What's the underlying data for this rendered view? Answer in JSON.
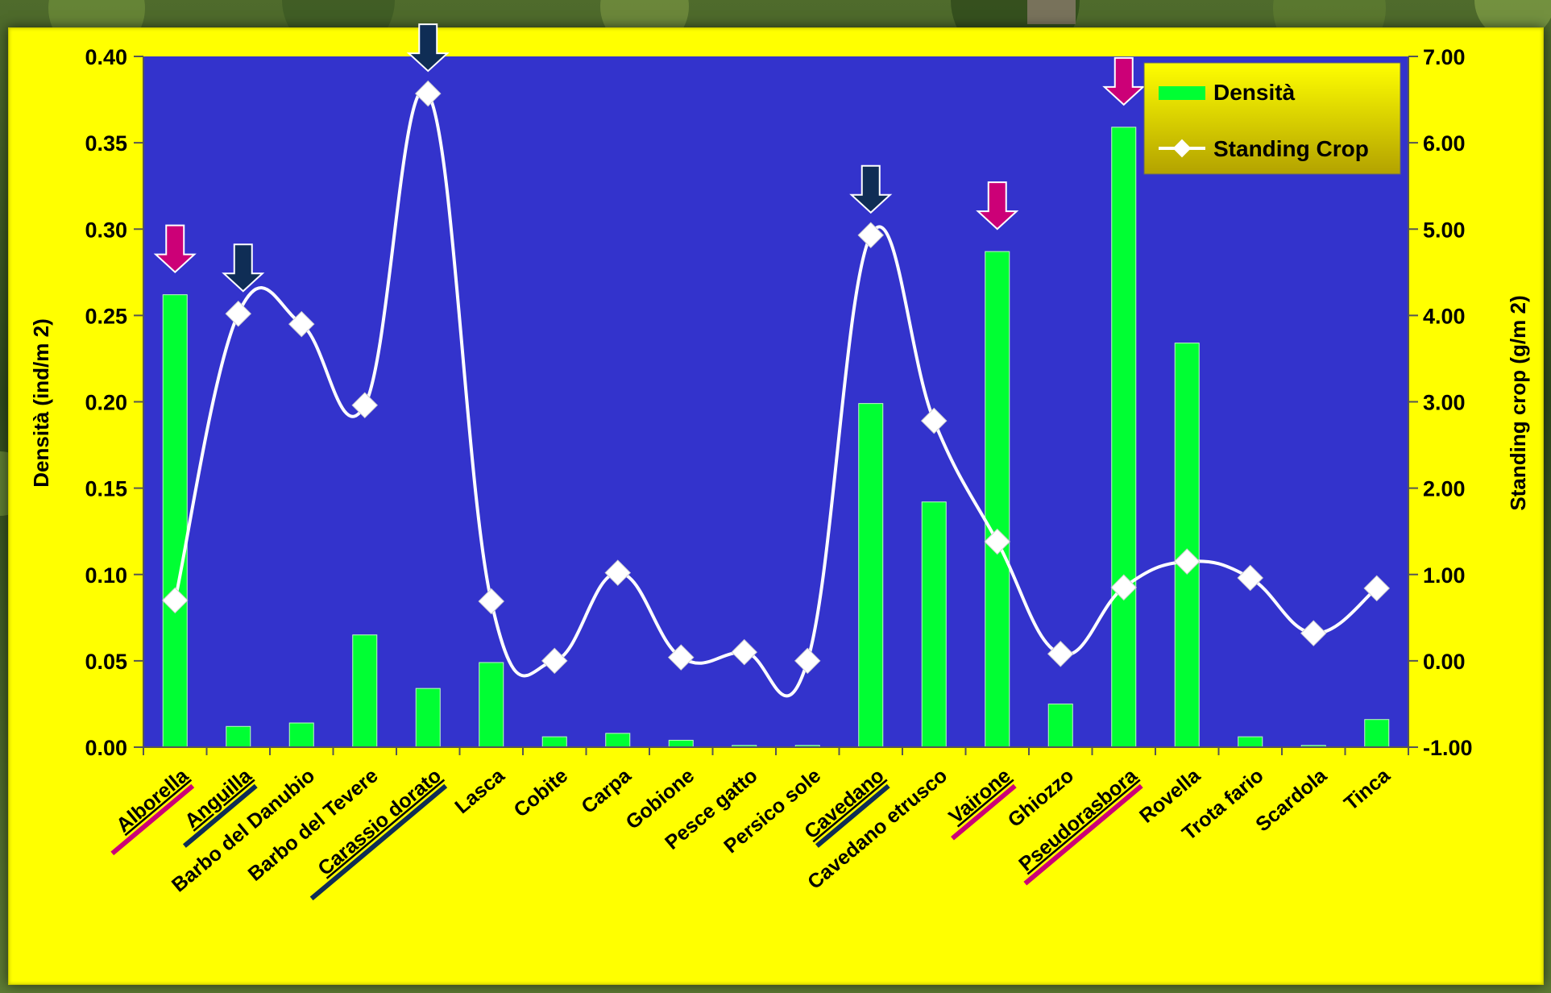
{
  "chart_data": {
    "type": "bar+line",
    "categories": [
      "Alborella",
      "Anguilla",
      "Barbo del Danubio",
      "Barbo del Tevere",
      "Carassio dorato",
      "Lasca",
      "Cobite",
      "Carpa",
      "Gobione",
      "Pesce gatto",
      "Persico sole",
      "Cavedano",
      "Cavedano etrusco",
      "Vairone",
      "Ghiozzo",
      "Pseudorasbora",
      "Rovella",
      "Trota fario",
      "Scardola",
      "Tinca"
    ],
    "series": [
      {
        "name": "Densità",
        "kind": "bar",
        "axis": "left",
        "values": [
          0.262,
          0.012,
          0.014,
          0.065,
          0.034,
          0.049,
          0.006,
          0.008,
          0.004,
          0.001,
          0.001,
          0.199,
          0.142,
          0.287,
          0.025,
          0.359,
          0.234,
          0.006,
          0.001,
          0.016
        ]
      },
      {
        "name": "Standing Crop",
        "kind": "line",
        "axis": "right",
        "values": [
          0.7,
          4.02,
          3.9,
          2.96,
          6.57,
          0.69,
          0.0,
          1.02,
          0.04,
          0.1,
          0.0,
          4.93,
          2.78,
          1.38,
          0.08,
          0.85,
          1.15,
          0.96,
          0.32,
          0.84
        ]
      }
    ],
    "ylabel": "Densità (ind/m 2)",
    "y2label": "Standing crop (g/m 2)",
    "ylim": [
      0,
      0.4
    ],
    "y2lim": [
      -1,
      7
    ],
    "yticks": [
      "0.00",
      "0.05",
      "0.10",
      "0.15",
      "0.20",
      "0.25",
      "0.30",
      "0.35",
      "0.40"
    ],
    "y2ticks": [
      "-1.00",
      "0.00",
      "1.00",
      "2.00",
      "3.00",
      "4.00",
      "5.00",
      "6.00",
      "7.00"
    ],
    "legend_position": "top-right",
    "grid": false,
    "highlighted_categories": {
      "magenta": [
        "Alborella",
        "Vairone",
        "Pseudorasbora"
      ],
      "navy": [
        "Anguilla",
        "Carassio dorato",
        "Cavedano"
      ]
    },
    "colors": {
      "page_background": "#ffff00",
      "plot_background": "#3333cc",
      "bar": "#00ff33",
      "line": "#ffffff",
      "arrow_magenta": "#cc0077",
      "arrow_navy": "#0f2d55"
    }
  }
}
